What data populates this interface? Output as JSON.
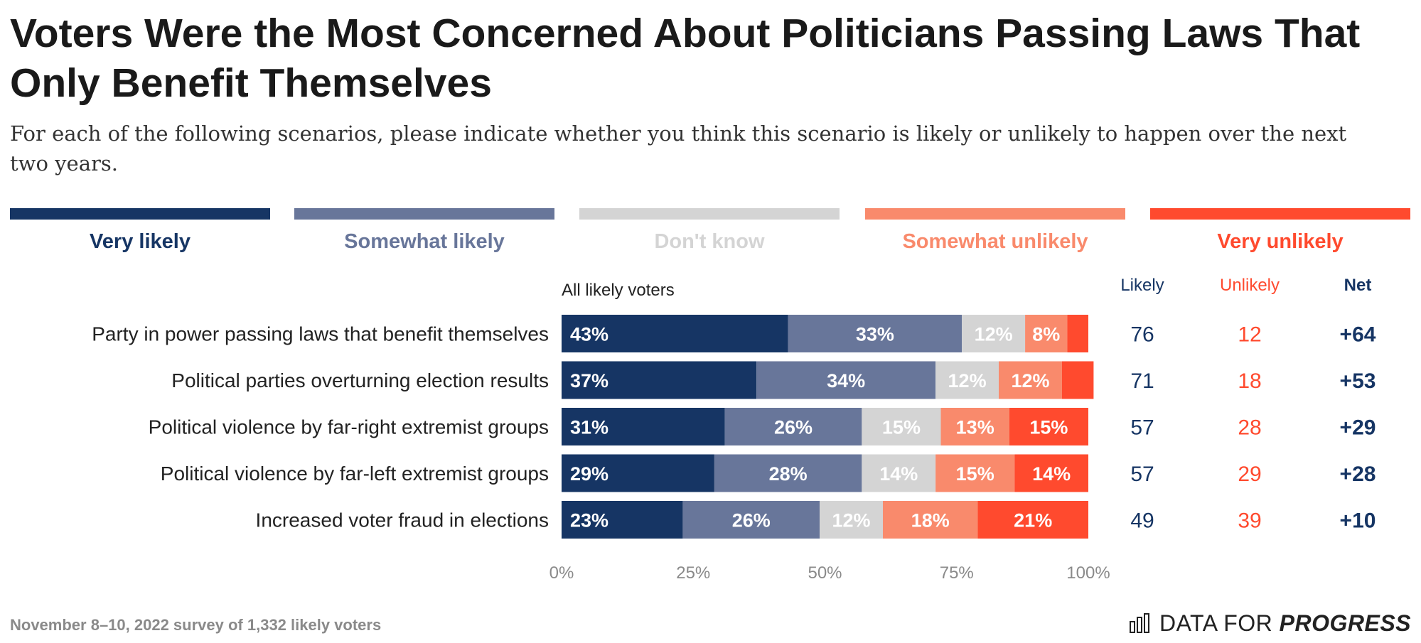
{
  "title": "Voters Were the Most Concerned About Politicians Passing Laws That Only Benefit Themselves",
  "subtitle": "For each of the following scenarios, please indicate whether you think this scenario is likely or unlikely to happen over the next two years.",
  "legend": [
    {
      "label": "Very likely",
      "color": "#163564"
    },
    {
      "label": "Somewhat likely",
      "color": "#68769a"
    },
    {
      "label": "Don't know",
      "color": "#d4d4d4"
    },
    {
      "label": "Somewhat unlikely",
      "color": "#f98a6c"
    },
    {
      "label": "Very unlikely",
      "color": "#ff4a2e"
    }
  ],
  "chart_data": {
    "type": "bar",
    "orientation": "horizontal",
    "stacked": true,
    "title": "Voters Were the Most Concerned About Politicians Passing Laws That Only Benefit Themselves",
    "group_label": "All likely voters",
    "categories": [
      "Party in power passing laws that benefit themselves",
      "Political parties overturning election results",
      "Political violence by far-right extremist groups",
      "Political violence by far-left extremist groups",
      "Increased voter fraud in elections"
    ],
    "series": [
      {
        "name": "Very likely",
        "values": [
          43,
          37,
          31,
          29,
          23
        ],
        "labels": [
          "43%",
          "37%",
          "31%",
          "29%",
          "23%"
        ]
      },
      {
        "name": "Somewhat likely",
        "values": [
          33,
          34,
          26,
          28,
          26
        ],
        "labels": [
          "33%",
          "34%",
          "26%",
          "28%",
          "26%"
        ]
      },
      {
        "name": "Don't know",
        "values": [
          12,
          12,
          15,
          14,
          12
        ],
        "labels": [
          "12%",
          "12%",
          "15%",
          "14%",
          "12%"
        ]
      },
      {
        "name": "Somewhat unlikely",
        "values": [
          8,
          12,
          13,
          15,
          18
        ],
        "labels": [
          "8%",
          "12%",
          "13%",
          "15%",
          "18%"
        ]
      },
      {
        "name": "Very unlikely",
        "values": [
          4,
          6,
          15,
          14,
          21
        ],
        "labels": [
          "",
          "",
          "15%",
          "14%",
          "21%"
        ]
      }
    ],
    "x_ticks": [
      "0%",
      "25%",
      "50%",
      "75%",
      "100%"
    ],
    "xlim": [
      0,
      100
    ],
    "summary_headers": {
      "likely": "Likely",
      "unlikely": "Unlikely",
      "net": "Net"
    },
    "summary_colors": {
      "likely": "#163564",
      "unlikely": "#ff4a2e",
      "net": "#163564"
    },
    "likely": [
      "76",
      "71",
      "57",
      "57",
      "49"
    ],
    "unlikely": [
      "12",
      "18",
      "28",
      "29",
      "39"
    ],
    "net": [
      "+64",
      "+53",
      "+29",
      "+28",
      "+10"
    ]
  },
  "footer": "November 8–10, 2022 survey of 1,332 likely voters",
  "brand": {
    "data_for": "DATA FOR",
    "progress": "PROGRESS"
  }
}
